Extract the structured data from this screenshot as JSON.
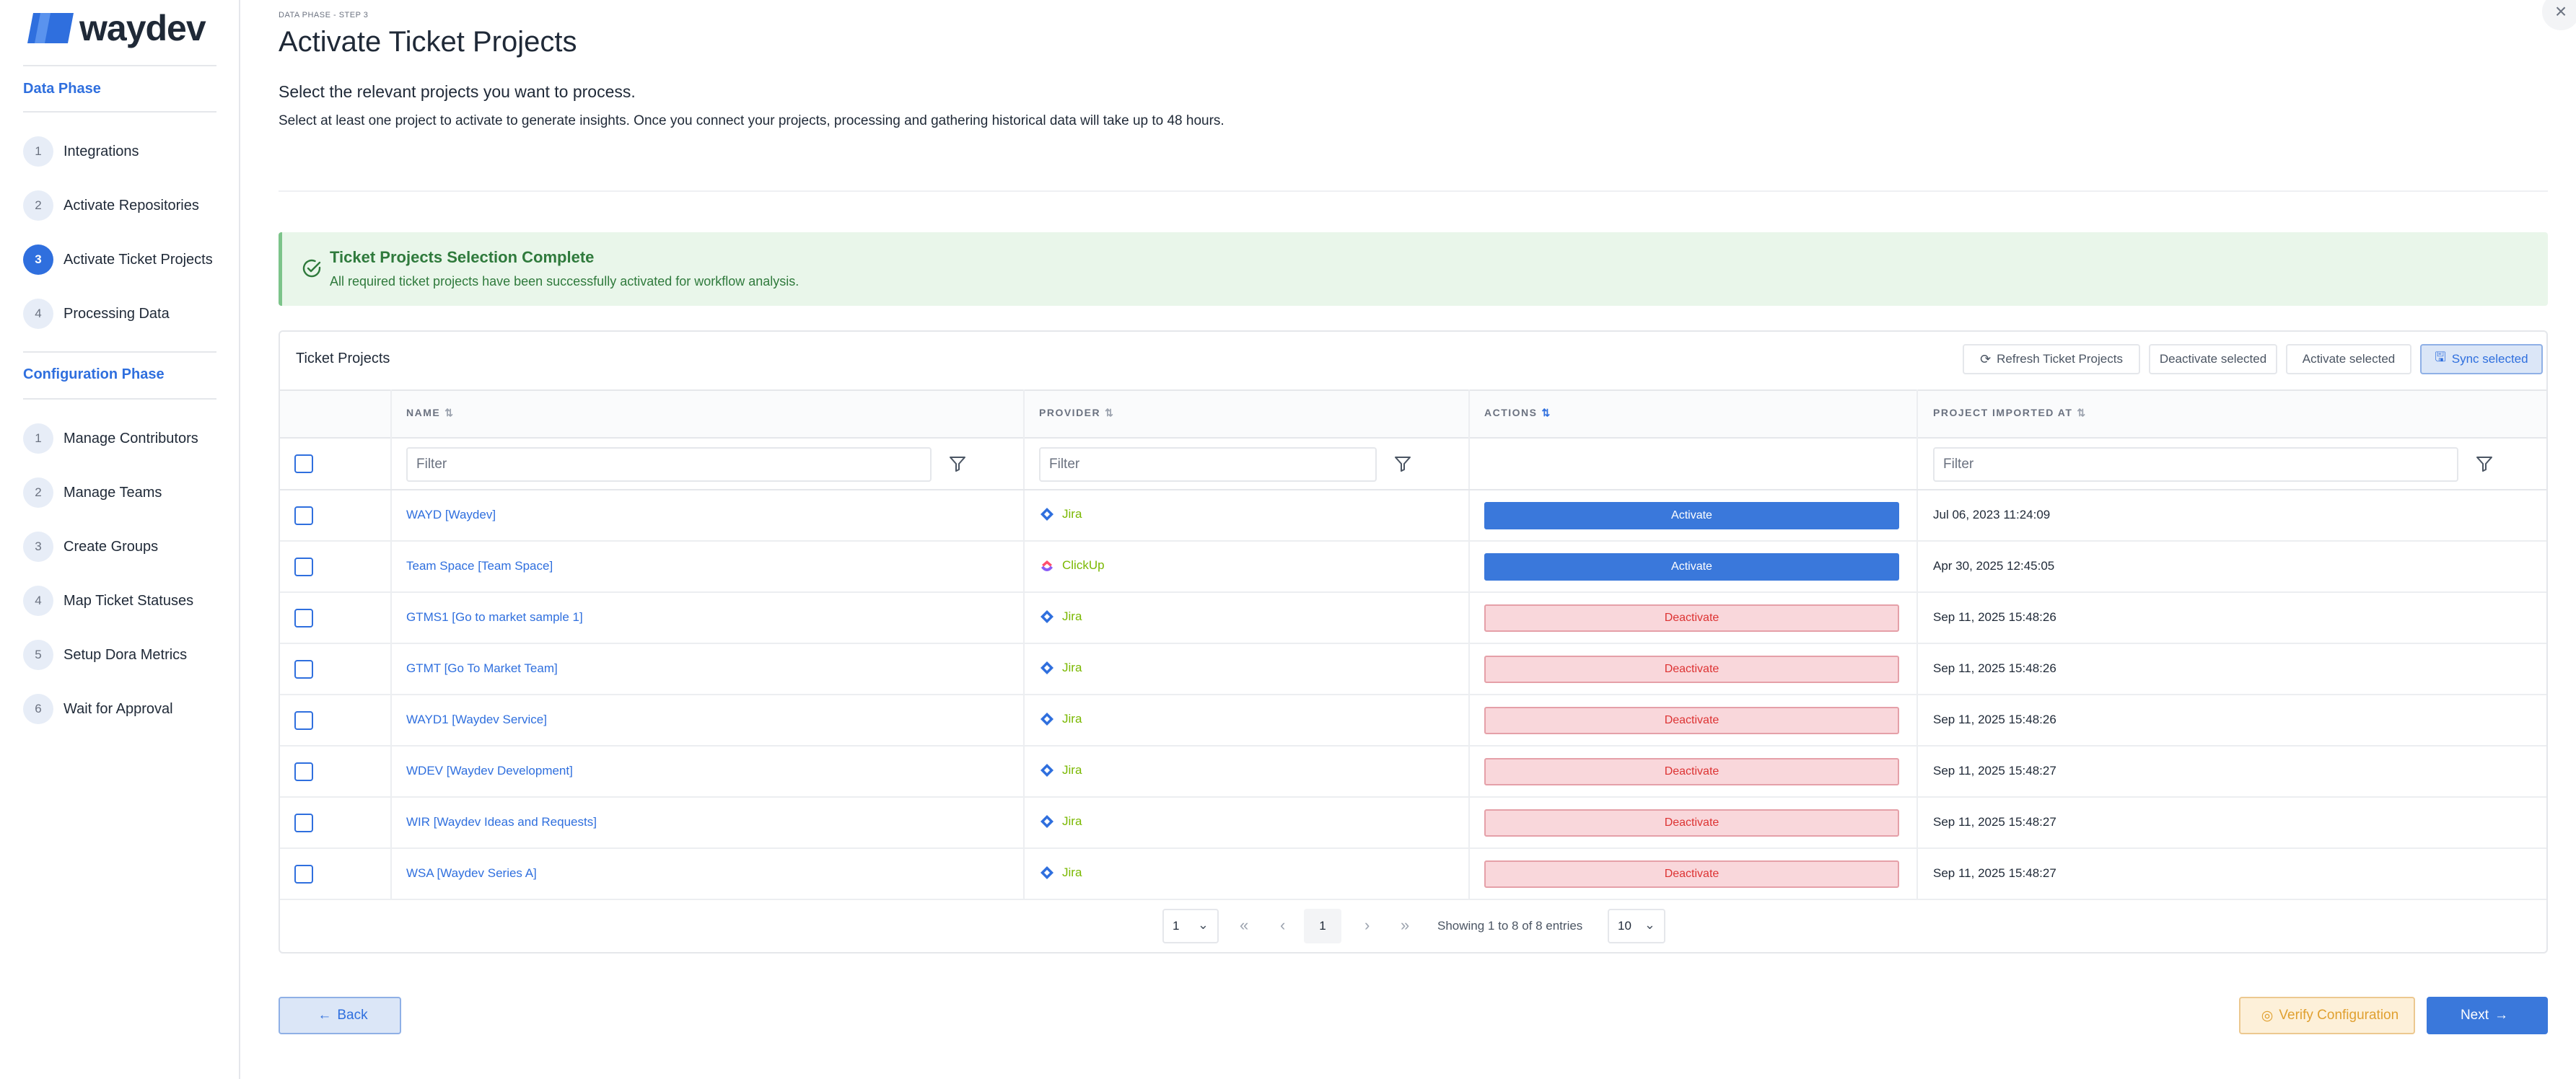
{
  "brand": {
    "name": "waydev"
  },
  "sidebar": {
    "data_phase": {
      "title": "Data Phase",
      "items": [
        {
          "num": "1",
          "label": "Integrations"
        },
        {
          "num": "2",
          "label": "Activate Repositories"
        },
        {
          "num": "3",
          "label": "Activate Ticket Projects",
          "active": true
        },
        {
          "num": "4",
          "label": "Processing Data"
        }
      ]
    },
    "config_phase": {
      "title": "Configuration Phase",
      "items": [
        {
          "num": "1",
          "label": "Manage Contributors"
        },
        {
          "num": "2",
          "label": "Manage Teams"
        },
        {
          "num": "3",
          "label": "Create Groups"
        },
        {
          "num": "4",
          "label": "Map Ticket Statuses"
        },
        {
          "num": "5",
          "label": "Setup Dora Metrics"
        },
        {
          "num": "6",
          "label": "Wait for Approval"
        }
      ]
    }
  },
  "header": {
    "breadcrumb": "DATA PHASE - STEP 3",
    "title": "Activate Ticket Projects",
    "subtitle": "Select the relevant projects you want to process.",
    "description": "Select at least one project to activate to generate insights. Once you connect your projects, processing and gathering historical data will take up to 48 hours."
  },
  "success": {
    "title": "Ticket Projects Selection Complete",
    "text": "All required ticket projects have been successfully activated for workflow analysis.",
    "color": "#2f7a3c"
  },
  "table": {
    "title": "Ticket Projects",
    "toolbar": {
      "refresh": "Refresh Ticket Projects",
      "deactivate": "Deactivate selected",
      "activate": "Activate selected",
      "sync": "Sync selected"
    },
    "columns": {
      "name": "NAME",
      "provider": "PROVIDER",
      "actions": "ACTIONS",
      "imported": "PROJECT IMPORTED AT"
    },
    "filter_placeholder": "Filter",
    "rows": [
      {
        "name": "WAYD [Waydev]",
        "provider": "Jira",
        "provider_icon": "jira-icon",
        "action": "Activate",
        "date": "Jul 06, 2023 11:24:09"
      },
      {
        "name": "Team Space [Team Space]",
        "provider": "ClickUp",
        "provider_icon": "clickup-icon",
        "action": "Activate",
        "date": "Apr 30, 2025 12:45:05"
      },
      {
        "name": "GTMS1 [Go to market sample 1]",
        "provider": "Jira",
        "provider_icon": "jira-icon",
        "action": "Deactivate",
        "date": "Sep 11, 2025 15:48:26"
      },
      {
        "name": "GTMT [Go To Market Team]",
        "provider": "Jira",
        "provider_icon": "jira-icon",
        "action": "Deactivate",
        "date": "Sep 11, 2025 15:48:26"
      },
      {
        "name": "WAYD1 [Waydev Service]",
        "provider": "Jira",
        "provider_icon": "jira-icon",
        "action": "Deactivate",
        "date": "Sep 11, 2025 15:48:26"
      },
      {
        "name": "WDEV [Waydev Development]",
        "provider": "Jira",
        "provider_icon": "jira-icon",
        "action": "Deactivate",
        "date": "Sep 11, 2025 15:48:27"
      },
      {
        "name": "WIR [Waydev Ideas and Requests]",
        "provider": "Jira",
        "provider_icon": "jira-icon",
        "action": "Deactivate",
        "date": "Sep 11, 2025 15:48:27"
      },
      {
        "name": "WSA [Waydev Series A]",
        "provider": "Jira",
        "provider_icon": "jira-icon",
        "action": "Deactivate",
        "date": "Sep 11, 2025 15:48:27"
      }
    ],
    "pagination": {
      "page_select": "1",
      "current_page": "1",
      "info": "Showing 1 to 8 of 8 entries",
      "page_size": "10"
    }
  },
  "footer": {
    "back": "Back",
    "verify": "Verify Configuration",
    "next": "Next"
  },
  "colors": {
    "accent": "#2f6fde",
    "activate": "#3a78db",
    "deactivate_bg": "#f9d7db",
    "deactivate_text": "#dd3333",
    "jira": "#2f6fde",
    "provider_text": "#7ab800"
  }
}
